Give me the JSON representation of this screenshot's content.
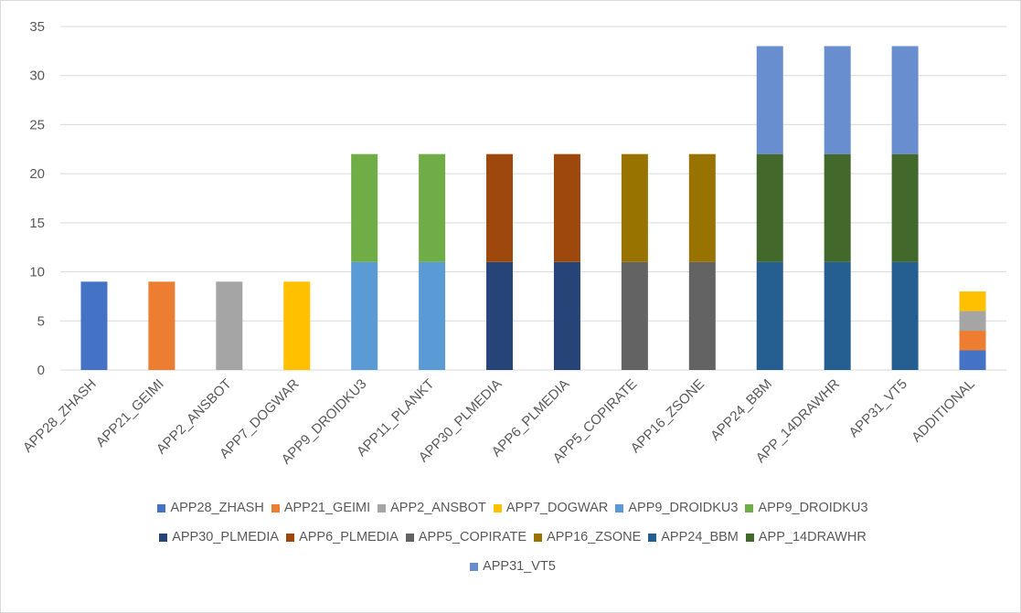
{
  "chart_data": {
    "type": "bar",
    "stacked": true,
    "title": "",
    "xlabel": "",
    "ylabel": "",
    "ylim": [
      0,
      35
    ],
    "yticks": [
      0,
      5,
      10,
      15,
      20,
      25,
      30,
      35
    ],
    "grid": true,
    "legend_position": "bottom",
    "categories": [
      "APP28_ZHASH",
      "APP21_GEIMI",
      "APP2_ANSBOT",
      "APP7_DOGWAR",
      "APP9_DROIDKU3",
      "APP11_PLANKT",
      "APP30_PLMEDIA",
      "APP6_PLMEDIA",
      "APP5_COPIRATE",
      "APP16_ZSONE",
      "APP24_BBM",
      "APP_14DRAWHR",
      "APP31_VT5",
      "ADDITIONAL"
    ],
    "series": [
      {
        "name": "APP28_ZHASH",
        "color": "#4472c4",
        "values": [
          9,
          0,
          0,
          0,
          0,
          0,
          0,
          0,
          0,
          0,
          0,
          0,
          0,
          2
        ]
      },
      {
        "name": "APP21_GEIMI",
        "color": "#ed7d31",
        "values": [
          0,
          9,
          0,
          0,
          0,
          0,
          0,
          0,
          0,
          0,
          0,
          0,
          0,
          2
        ]
      },
      {
        "name": "APP2_ANSBOT",
        "color": "#a5a5a5",
        "values": [
          0,
          0,
          9,
          0,
          0,
          0,
          0,
          0,
          0,
          0,
          0,
          0,
          0,
          2
        ]
      },
      {
        "name": "APP7_DOGWAR",
        "color": "#ffc000",
        "values": [
          0,
          0,
          0,
          9,
          0,
          0,
          0,
          0,
          0,
          0,
          0,
          0,
          0,
          2
        ]
      },
      {
        "name": "APP9_DROIDKU3",
        "color": "#5b9bd5",
        "values": [
          0,
          0,
          0,
          0,
          11,
          11,
          0,
          0,
          0,
          0,
          0,
          0,
          0,
          0
        ]
      },
      {
        "name": "APP9_DROIDKU3",
        "color": "#70ad47",
        "values": [
          0,
          0,
          0,
          0,
          11,
          11,
          0,
          0,
          0,
          0,
          0,
          0,
          0,
          0
        ]
      },
      {
        "name": "APP30_PLMEDIA",
        "color": "#264478",
        "values": [
          0,
          0,
          0,
          0,
          0,
          0,
          11,
          11,
          0,
          0,
          0,
          0,
          0,
          0
        ]
      },
      {
        "name": "APP6_PLMEDIA",
        "color": "#9e480e",
        "values": [
          0,
          0,
          0,
          0,
          0,
          0,
          11,
          11,
          0,
          0,
          0,
          0,
          0,
          0
        ]
      },
      {
        "name": "APP5_COPIRATE",
        "color": "#636363",
        "values": [
          0,
          0,
          0,
          0,
          0,
          0,
          0,
          0,
          11,
          11,
          0,
          0,
          0,
          0
        ]
      },
      {
        "name": "APP16_ZSONE",
        "color": "#997300",
        "values": [
          0,
          0,
          0,
          0,
          0,
          0,
          0,
          0,
          11,
          11,
          0,
          0,
          0,
          0
        ]
      },
      {
        "name": "APP24_BBM",
        "color": "#255e91",
        "values": [
          0,
          0,
          0,
          0,
          0,
          0,
          0,
          0,
          0,
          0,
          11,
          11,
          11,
          0
        ]
      },
      {
        "name": "APP_14DRAWHR",
        "color": "#43682b",
        "values": [
          0,
          0,
          0,
          0,
          0,
          0,
          0,
          0,
          0,
          0,
          11,
          11,
          11,
          0
        ]
      },
      {
        "name": "APP31_VT5",
        "color": "#698ed0",
        "values": [
          0,
          0,
          0,
          0,
          0,
          0,
          0,
          0,
          0,
          0,
          11,
          11,
          11,
          0
        ]
      }
    ],
    "legend": [
      {
        "label": "APP28_ZHASH",
        "color": "#4472c4"
      },
      {
        "label": "APP21_GEIMI",
        "color": "#ed7d31"
      },
      {
        "label": "APP2_ANSBOT",
        "color": "#a5a5a5"
      },
      {
        "label": "APP7_DOGWAR",
        "color": "#ffc000"
      },
      {
        "label": "APP9_DROIDKU3",
        "color": "#5b9bd5"
      },
      {
        "label": "APP9_DROIDKU3",
        "color": "#70ad47"
      },
      {
        "label": "APP30_PLMEDIA",
        "color": "#264478"
      },
      {
        "label": "APP6_PLMEDIA",
        "color": "#9e480e"
      },
      {
        "label": "APP5_COPIRATE",
        "color": "#636363"
      },
      {
        "label": "APP16_ZSONE",
        "color": "#997300"
      },
      {
        "label": "APP24_BBM",
        "color": "#255e91"
      },
      {
        "label": "APP_14DRAWHR",
        "color": "#43682b"
      },
      {
        "label": "APP31_VT5",
        "color": "#698ed0"
      }
    ]
  }
}
